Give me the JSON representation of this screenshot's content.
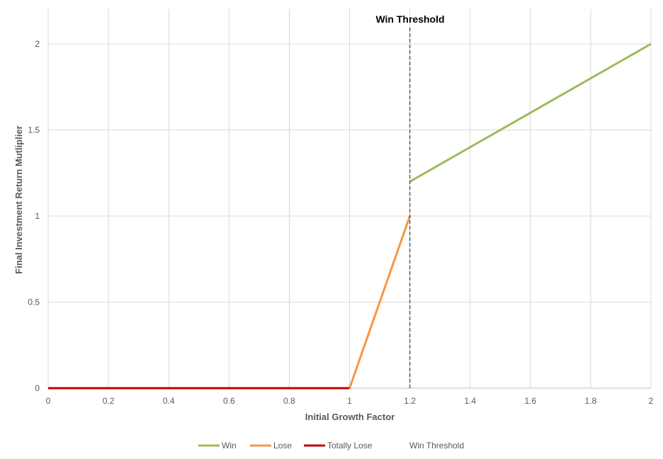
{
  "chart_data": {
    "type": "line",
    "title": "",
    "xlabel": "Initial Growth Factor",
    "ylabel": "Final Investment Return Mutliplier",
    "xlim": [
      0,
      2
    ],
    "ylim": [
      0,
      2
    ],
    "x_ticks": [
      "0",
      "0.2",
      "0.4",
      "0.6",
      "0.8",
      "1",
      "1.2",
      "1.4",
      "1.6",
      "1.8",
      "2"
    ],
    "y_ticks": [
      "0",
      "0.5",
      "1",
      "1.5",
      "2"
    ],
    "grid": true,
    "legend_position": "bottom",
    "series": [
      {
        "name": "Win",
        "color": "#9BBB59",
        "points": [
          [
            1.2,
            1.2
          ],
          [
            2,
            2
          ]
        ]
      },
      {
        "name": "Lose",
        "color": "#F79646",
        "points": [
          [
            1,
            0
          ],
          [
            1.2,
            1
          ]
        ]
      },
      {
        "name": "Totally Lose",
        "color": "#C00000",
        "points": [
          [
            0,
            0
          ],
          [
            1,
            0
          ]
        ]
      },
      {
        "name": "Win Threshold",
        "color": "#595959",
        "style": "dashed",
        "points": [
          [
            1.2,
            0
          ],
          [
            1.2,
            2.2
          ]
        ]
      }
    ],
    "annotations": [
      {
        "text": "Win Threshold",
        "x": 1.2,
        "y": 2.2
      }
    ]
  }
}
